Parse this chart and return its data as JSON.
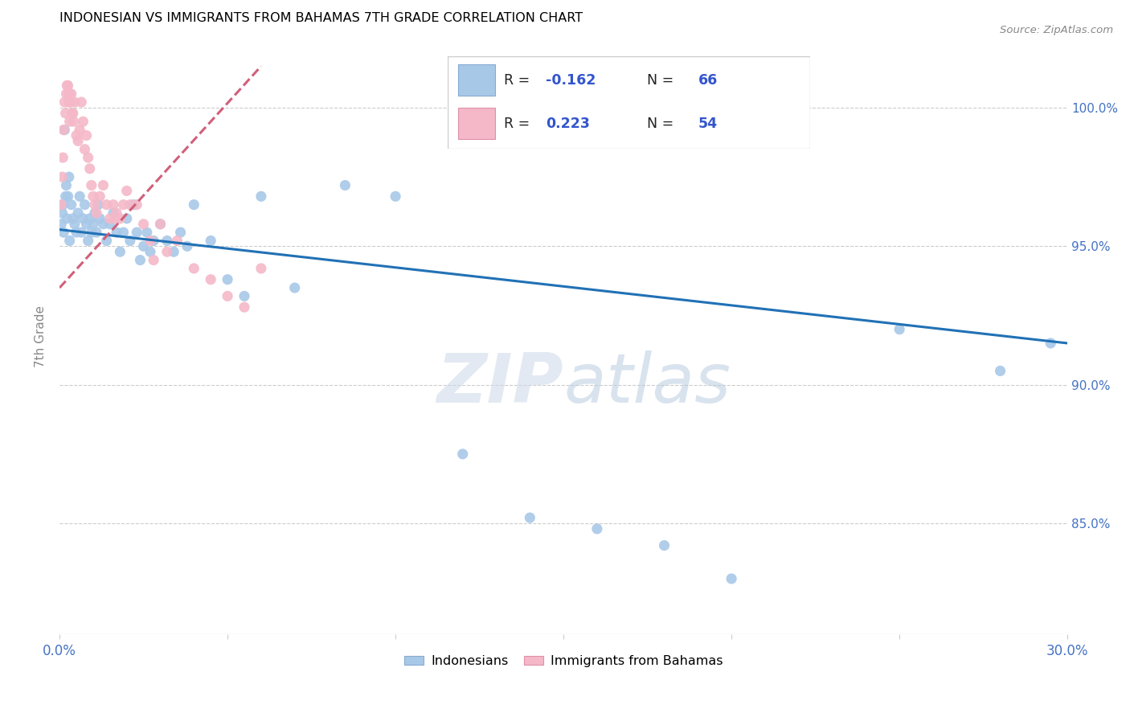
{
  "title": "INDONESIAN VS IMMIGRANTS FROM BAHAMAS 7TH GRADE CORRELATION CHART",
  "source": "Source: ZipAtlas.com",
  "ylabel": "7th Grade",
  "right_yticks": [
    85.0,
    90.0,
    95.0,
    100.0
  ],
  "right_ytick_labels": [
    "85.0%",
    "90.0%",
    "95.0%",
    "100.0%"
  ],
  "xmin": 0.0,
  "xmax": 30.0,
  "ymin": 81.0,
  "ymax": 102.5,
  "watermark": "ZIPatlas",
  "blue_color": "#a8c8e8",
  "pink_color": "#f4b8c8",
  "blue_line_color": "#2171b5",
  "pink_line_color": "#d0607a",
  "blue_r": "-0.162",
  "blue_n": "66",
  "pink_r": "0.223",
  "pink_n": "54",
  "indonesian_x": [
    0.05,
    0.08,
    0.1,
    0.12,
    0.15,
    0.18,
    0.2,
    0.22,
    0.25,
    0.28,
    0.3,
    0.35,
    0.4,
    0.45,
    0.5,
    0.55,
    0.6,
    0.65,
    0.7,
    0.75,
    0.8,
    0.85,
    0.9,
    0.95,
    1.0,
    1.05,
    1.1,
    1.15,
    1.2,
    1.3,
    1.4,
    1.5,
    1.6,
    1.7,
    1.8,
    1.9,
    2.0,
    2.1,
    2.2,
    2.3,
    2.4,
    2.5,
    2.6,
    2.7,
    2.8,
    3.0,
    3.2,
    3.4,
    3.6,
    3.8,
    4.0,
    4.5,
    5.0,
    5.5,
    6.0,
    7.0,
    8.5,
    10.0,
    12.0,
    14.0,
    16.0,
    18.0,
    20.0,
    25.0,
    28.0,
    29.5
  ],
  "indonesian_y": [
    95.8,
    96.2,
    96.5,
    95.5,
    99.2,
    96.8,
    97.2,
    96.0,
    96.8,
    97.5,
    95.2,
    96.5,
    96.0,
    95.8,
    95.5,
    96.2,
    96.8,
    95.5,
    96.0,
    96.5,
    95.8,
    95.2,
    96.0,
    95.5,
    95.8,
    96.2,
    95.5,
    96.5,
    96.0,
    95.8,
    95.2,
    95.8,
    96.2,
    95.5,
    94.8,
    95.5,
    96.0,
    95.2,
    96.5,
    95.5,
    94.5,
    95.0,
    95.5,
    94.8,
    95.2,
    95.8,
    95.2,
    94.8,
    95.5,
    95.0,
    96.5,
    95.2,
    93.8,
    93.2,
    96.8,
    93.5,
    97.2,
    96.8,
    87.5,
    85.2,
    84.8,
    84.2,
    83.0,
    92.0,
    90.5,
    91.5
  ],
  "bahamas_x": [
    0.05,
    0.08,
    0.1,
    0.12,
    0.15,
    0.18,
    0.2,
    0.22,
    0.25,
    0.28,
    0.3,
    0.35,
    0.4,
    0.45,
    0.5,
    0.55,
    0.6,
    0.65,
    0.7,
    0.75,
    0.8,
    0.85,
    0.9,
    0.95,
    1.0,
    1.05,
    1.1,
    1.2,
    1.3,
    1.4,
    1.5,
    1.6,
    1.7,
    1.8,
    1.9,
    2.0,
    2.1,
    2.3,
    2.5,
    2.7,
    3.0,
    3.5,
    4.0,
    4.5,
    5.0,
    5.5,
    6.0,
    2.8,
    3.2,
    1.65,
    0.42,
    0.38,
    0.33,
    0.28
  ],
  "bahamas_y": [
    96.5,
    97.5,
    98.2,
    99.2,
    100.2,
    99.8,
    100.5,
    100.8,
    100.8,
    100.2,
    99.5,
    100.5,
    99.8,
    100.2,
    99.0,
    98.8,
    99.2,
    100.2,
    99.5,
    98.5,
    99.0,
    98.2,
    97.8,
    97.2,
    96.8,
    96.5,
    96.2,
    96.8,
    97.2,
    96.5,
    96.0,
    96.5,
    96.2,
    96.0,
    96.5,
    97.0,
    96.5,
    96.5,
    95.8,
    95.2,
    95.8,
    95.2,
    94.2,
    93.8,
    93.2,
    92.8,
    94.2,
    94.5,
    94.8,
    96.0,
    99.5,
    99.8,
    100.2,
    100.5
  ],
  "blue_trendline_x": [
    0.0,
    30.0
  ],
  "blue_trendline_y": [
    95.6,
    91.5
  ],
  "pink_trendline_x": [
    0.0,
    6.0
  ],
  "pink_trendline_y": [
    93.5,
    101.5
  ]
}
